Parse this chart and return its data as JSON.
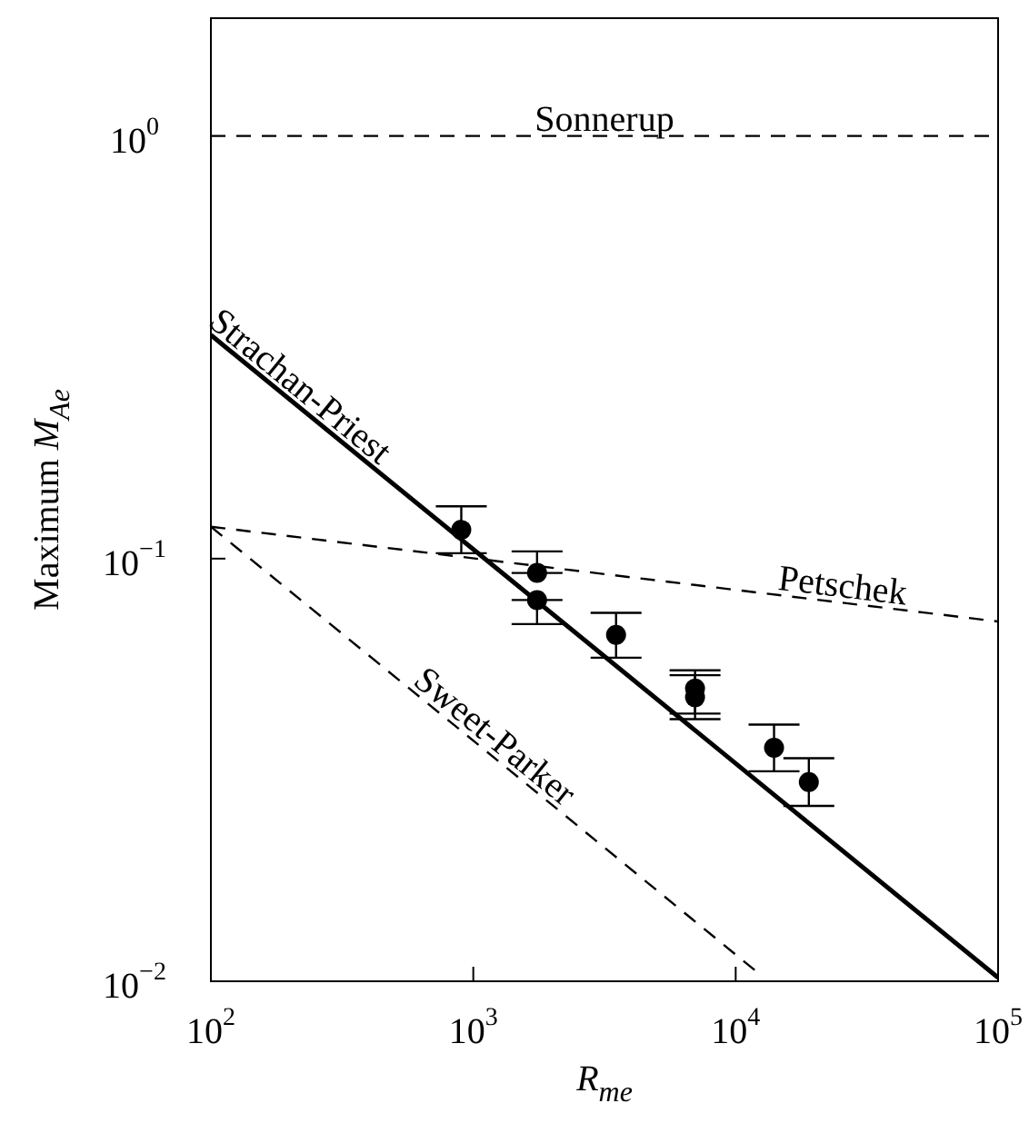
{
  "chart_data": {
    "type": "line",
    "xlabel": "R$_{me}$",
    "ylabel": "Maximum M$_{Ae}$",
    "log": "xy",
    "grid": false,
    "legend": false,
    "xlim": [
      100,
      100000
    ],
    "ylim": [
      0.01,
      1.9
    ],
    "xticks": [
      {
        "value": 100,
        "label": "10$^{2}$"
      },
      {
        "value": 1000,
        "label": "10$^{3}$"
      },
      {
        "value": 10000,
        "label": "10$^{4}$"
      },
      {
        "value": 100000,
        "label": "10$^{5}$"
      }
    ],
    "yticks": [
      {
        "value": 0.01,
        "label": "10$^{−2}$"
      },
      {
        "value": 0.1,
        "label": "10$^{−1}$"
      },
      {
        "value": 1,
        "label": "10$^{0}$"
      }
    ],
    "series": [
      {
        "name": "Sonnerup",
        "line_style": "dashed",
        "color": "#000000",
        "x": [
          100,
          100000
        ],
        "values": [
          1,
          1
        ]
      },
      {
        "name": "Strachan-Priest",
        "line_style": "solid",
        "color": "#000000",
        "x": [
          100,
          100000
        ],
        "values": [
          0.338,
          0.0102
        ]
      },
      {
        "name": "Petschek",
        "line_style": "dashed",
        "color": "#000000",
        "x": [
          100,
          100000
        ],
        "values": [
          0.119,
          0.071
        ]
      },
      {
        "name": "Sweet-Parker",
        "line_style": "dashed",
        "color": "#000000",
        "x": [
          100,
          12100
        ],
        "values": [
          0.119,
          0.0105
        ]
      },
      {
        "type": "scatter",
        "marker": "circle",
        "color": "#000000",
        "x": [
          900,
          1750,
          1750,
          3500,
          7000,
          7000,
          14000,
          19000
        ],
        "values": [
          0.117,
          0.0925,
          0.0798,
          0.066,
          0.0493,
          0.047,
          0.0357,
          0.0296
        ],
        "errors": [
          [
            0.103,
            0.133
          ],
          [
            0.0925,
            0.104
          ],
          [
            0.07,
            0.0798
          ],
          [
            0.0583,
            0.0744
          ],
          [
            0.043,
            0.0544
          ],
          [
            0.0417,
            0.053
          ],
          [
            0.0314,
            0.0405
          ],
          [
            0.026,
            0.0337
          ]
        ]
      }
    ]
  }
}
